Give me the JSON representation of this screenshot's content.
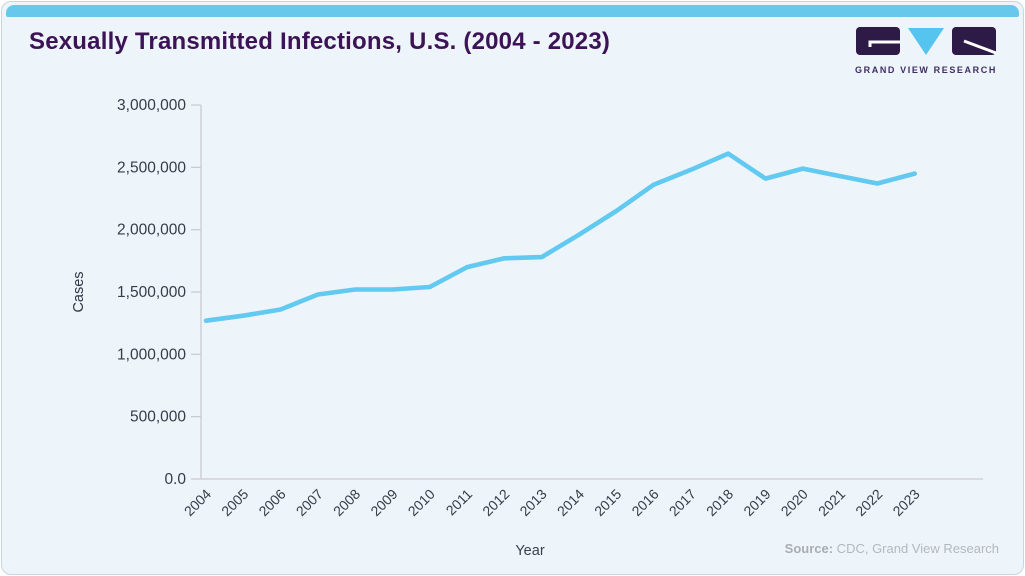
{
  "header": {
    "title": "Sexually Transmitted Infections, U.S. (2004 - 2023)"
  },
  "logo": {
    "name": "Grand View Research logo",
    "text": "GRAND VIEW RESEARCH"
  },
  "chart_data": {
    "type": "line",
    "title": "Sexually Transmitted Infections, U.S. (2004 - 2023)",
    "x": [
      2004,
      2005,
      2006,
      2007,
      2008,
      2009,
      2010,
      2011,
      2012,
      2013,
      2014,
      2015,
      2016,
      2017,
      2018,
      2019,
      2020,
      2021,
      2022,
      2023
    ],
    "values": [
      1270000,
      1310000,
      1360000,
      1480000,
      1520000,
      1520000,
      1540000,
      1700000,
      1770000,
      1780000,
      1960000,
      2150000,
      2360000,
      2480000,
      2610000,
      2410000,
      2490000,
      2430000,
      2370000,
      2450000
    ],
    "series_name": "Cases",
    "xlabel": "Year",
    "ylabel": "Cases",
    "ylim": [
      0,
      3000000
    ],
    "yticks": [
      {
        "value": 0,
        "label": "0.0"
      },
      {
        "value": 500000,
        "label": "500,000"
      },
      {
        "value": 1000000,
        "label": "1,000,000"
      },
      {
        "value": 1500000,
        "label": "1,500,000"
      },
      {
        "value": 2000000,
        "label": "2,000,000"
      },
      {
        "value": 2500000,
        "label": "2,500,000"
      },
      {
        "value": 3000000,
        "label": "3,000,000"
      }
    ],
    "grid": false,
    "legend": "none",
    "line_color": "#62c9f0"
  },
  "source": {
    "prefix": "Source:",
    "text": " CDC, Grand View Research"
  },
  "colors": {
    "accent_blue": "#68c8ec",
    "title_purple": "#3c1356",
    "logo_purple": "#2e1a47",
    "logo_blue": "#55c4ee",
    "background": "#eef5fa",
    "axis_line": "#c9ccd1",
    "tick_text": "#373b45",
    "source_gray": "#b4b8bd"
  }
}
